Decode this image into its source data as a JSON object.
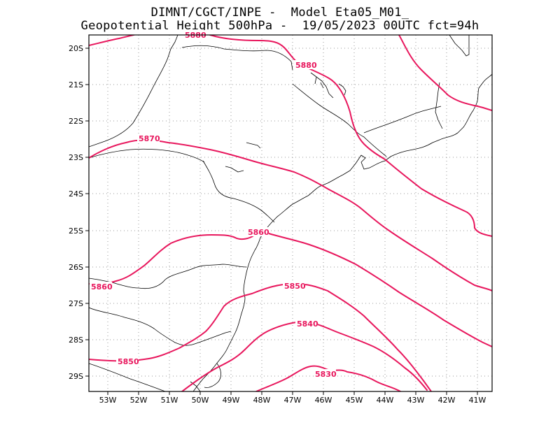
{
  "header": {
    "line1": "DIMNT/CGCT/INPE -  Model Eta05_M01_",
    "line2": "Geopotential Height 500hPa -  19/05/2023 00UTC fct=94h"
  },
  "axes": {
    "lon_range": [
      -53.6,
      -40.5
    ],
    "lat_range": [
      -29.4,
      -19.6
    ],
    "lon_ticks": [
      "53W",
      "52W",
      "51W",
      "50W",
      "49W",
      "48W",
      "47W",
      "46W",
      "45W",
      "44W",
      "43W",
      "42W",
      "41W"
    ],
    "lat_ticks": [
      "20S",
      "21S",
      "22S",
      "23S",
      "24S",
      "25S",
      "26S",
      "27S",
      "28S",
      "29S"
    ],
    "grid": "dotted"
  },
  "contours": {
    "color": "#e8175d",
    "levels": [
      "5880",
      "5880",
      "5870",
      "5860",
      "5860",
      "5850",
      "5850",
      "5840",
      "5830"
    ]
  },
  "colors": {
    "coastline": "#000000",
    "contour": "#e8175d",
    "grid": "#9a9a9a"
  }
}
